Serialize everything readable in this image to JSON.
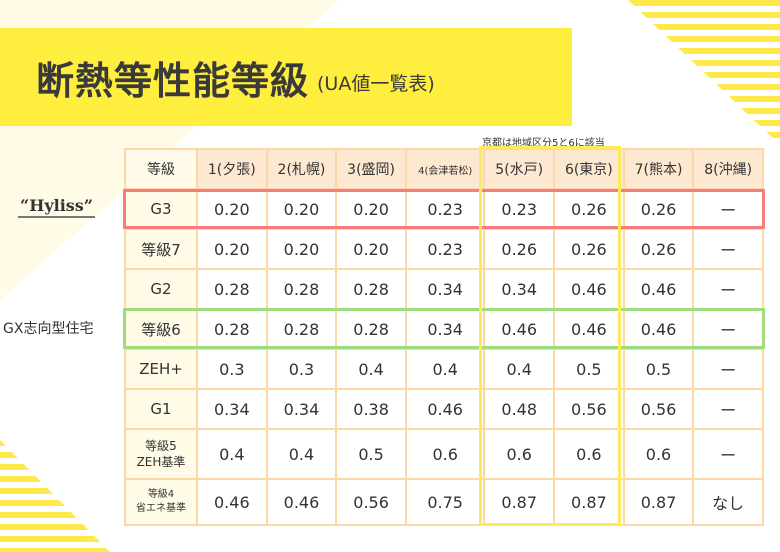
{
  "title": "断熱等性能等級",
  "subtitle": "(UA値一覧表)",
  "note": "京都は地域区分5と6に該当",
  "side_labels": {
    "hyliss": "“Hyliss”",
    "gx": "GX志向型住宅"
  },
  "colors": {
    "banner": "#ffee3d",
    "header": "#fde9d2",
    "border": "#fcd7a8",
    "highlight_hyliss": "#f77d7d",
    "highlight_gx": "#9fdc7a",
    "highlight_kyoto": "#ffeb5a"
  },
  "table": {
    "headers": [
      "等級",
      "1(夕張)",
      "2(札幌)",
      "3(盛岡)",
      "4(会津若松)",
      "5(水戸)",
      "6(東京)",
      "7(熊本)",
      "8(沖縄)"
    ],
    "rows": [
      {
        "label": "G3",
        "values": [
          "0.20",
          "0.20",
          "0.20",
          "0.23",
          "0.23",
          "0.26",
          "0.26",
          "ー"
        ]
      },
      {
        "label": "等級7",
        "values": [
          "0.20",
          "0.20",
          "0.20",
          "0.23",
          "0.26",
          "0.26",
          "0.26",
          "ー"
        ]
      },
      {
        "label": "G2",
        "values": [
          "0.28",
          "0.28",
          "0.28",
          "0.34",
          "0.34",
          "0.46",
          "0.46",
          "ー"
        ]
      },
      {
        "label": "等級6",
        "values": [
          "0.28",
          "0.28",
          "0.28",
          "0.34",
          "0.46",
          "0.46",
          "0.46",
          "ー"
        ]
      },
      {
        "label": "ZEH+",
        "values": [
          "0.3",
          "0.3",
          "0.4",
          "0.4",
          "0.4",
          "0.5",
          "0.5",
          "ー"
        ]
      },
      {
        "label": "G1",
        "values": [
          "0.34",
          "0.34",
          "0.38",
          "0.46",
          "0.48",
          "0.56",
          "0.56",
          "ー"
        ]
      },
      {
        "label": "等級5",
        "label2": "ZEH基準",
        "values": [
          "0.4",
          "0.4",
          "0.5",
          "0.6",
          "0.6",
          "0.6",
          "0.6",
          "ー"
        ]
      },
      {
        "label": "等級4",
        "label2": "省エネ基準",
        "values": [
          "0.46",
          "0.46",
          "0.56",
          "0.75",
          "0.87",
          "0.87",
          "0.87",
          "なし"
        ]
      }
    ]
  }
}
